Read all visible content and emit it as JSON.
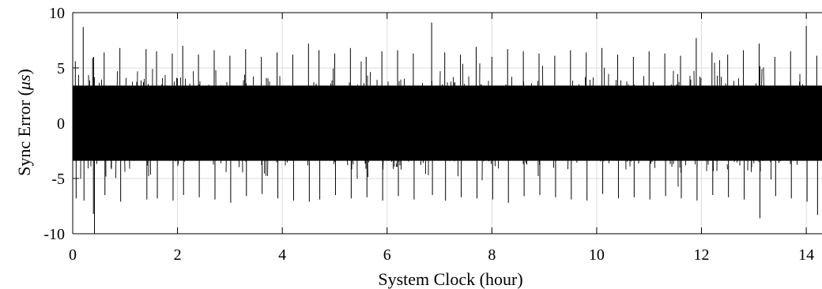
{
  "chart_data": {
    "type": "line",
    "title": "",
    "xlabel": "System Clock (hour)",
    "ylabel_text": "Sync Error (",
    "ylabel_unit": "μs",
    "ylabel_close": ")",
    "xlim": [
      0,
      14.3
    ],
    "ylim": [
      -10,
      10
    ],
    "xticks": [
      0,
      2,
      4,
      6,
      8,
      10,
      12,
      14
    ],
    "xtick_labels": [
      "0",
      "2",
      "4",
      "6",
      "8",
      "10",
      "12",
      "14"
    ],
    "yticks": [
      10,
      5,
      0,
      -5,
      -10
    ],
    "ytick_labels": [
      "10",
      "5",
      "0",
      "-5",
      "-10"
    ],
    "grid": true,
    "series": [
      {
        "color": "#000000",
        "band": {
          "x": [
            0,
            14.3
          ],
          "core_low": -3.4,
          "core_high": 3.4
        },
        "extremes": {
          "x": [
            0.05,
            0.2,
            0.38,
            0.4,
            0.6,
            0.9,
            1.4,
            1.6,
            1.9,
            2.1,
            2.4,
            2.7,
            3.0,
            3.3,
            3.6,
            3.9,
            4.2,
            4.5,
            4.7,
            5.0,
            5.3,
            5.6,
            5.9,
            6.2,
            6.5,
            6.85,
            7.1,
            7.4,
            7.7,
            8.0,
            8.3,
            8.6,
            8.9,
            9.2,
            9.5,
            9.8,
            10.1,
            10.4,
            10.7,
            11.0,
            11.3,
            11.6,
            11.9,
            12.2,
            12.5,
            12.8,
            13.1,
            13.4,
            13.7,
            14.0,
            14.2
          ],
          "high": [
            5.6,
            8.7,
            5.9,
            6.0,
            6.4,
            6.8,
            6.7,
            6.5,
            6.3,
            7.0,
            6.2,
            6.6,
            6.1,
            6.7,
            6.0,
            6.4,
            6.2,
            7.2,
            6.6,
            6.3,
            6.8,
            6.0,
            6.5,
            6.6,
            6.3,
            9.1,
            6.4,
            6.2,
            6.9,
            6.0,
            6.7,
            6.5,
            6.3,
            6.1,
            6.6,
            6.4,
            6.8,
            6.2,
            6.0,
            6.5,
            6.3,
            6.1,
            7.7,
            6.4,
            6.2,
            6.6,
            7.2,
            6.0,
            6.5,
            8.8,
            6.1
          ],
          "low": [
            -6.8,
            -7.0,
            -8.2,
            -10.0,
            -6.5,
            -7.1,
            -6.9,
            -6.8,
            -7.0,
            -6.5,
            -6.7,
            -6.9,
            -7.2,
            -6.6,
            -6.4,
            -6.8,
            -7.0,
            -7.1,
            -6.9,
            -6.5,
            -6.8,
            -6.7,
            -7.0,
            -6.6,
            -6.9,
            -6.5,
            -7.0,
            -6.7,
            -6.8,
            -6.9,
            -7.2,
            -6.6,
            -6.5,
            -6.7,
            -6.9,
            -7.0,
            -6.4,
            -6.8,
            -6.7,
            -6.9,
            -6.6,
            -6.8,
            -7.0,
            -6.5,
            -6.7,
            -6.9,
            -8.6,
            -6.6,
            -6.8,
            -7.1,
            -8.3
          ]
        }
      }
    ]
  }
}
